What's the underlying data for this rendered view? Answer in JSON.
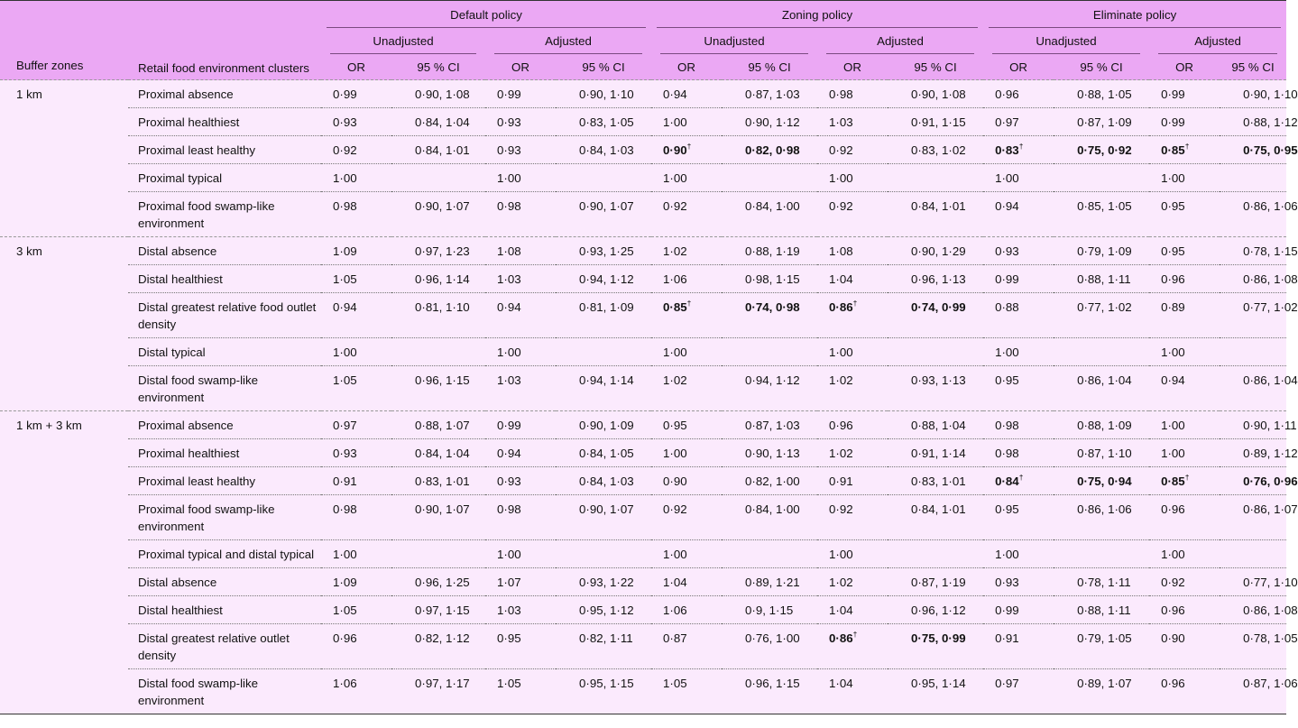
{
  "header": {
    "buffer_zones": "Buffer zones",
    "clusters": "Retail food environment clusters",
    "policies": [
      "Default policy",
      "Zoning policy",
      "Eliminate policy"
    ],
    "subgroups": [
      "Unadjusted",
      "Adjusted"
    ],
    "or": "OR",
    "ci": "95 % CI"
  },
  "groups": [
    {
      "zone": "1 km",
      "rows": [
        {
          "cluster": "Proximal absence",
          "v": [
            [
              "0·99",
              "0·90, 1·08"
            ],
            [
              "0·99",
              "0·90, 1·10"
            ],
            [
              "0·94",
              "0·87, 1·03"
            ],
            [
              "0·98",
              "0·90, 1·08"
            ],
            [
              "0·96",
              "0·88, 1·05"
            ],
            [
              "0·99",
              "0·90, 1·10"
            ]
          ]
        },
        {
          "cluster": "Proximal healthiest",
          "v": [
            [
              "0·93",
              "0·84, 1·04"
            ],
            [
              "0·93",
              "0·83, 1·05"
            ],
            [
              "1·00",
              "0·90, 1·12"
            ],
            [
              "1·03",
              "0·91, 1·15"
            ],
            [
              "0·97",
              "0·87, 1·09"
            ],
            [
              "0·99",
              "0·88, 1·12"
            ]
          ]
        },
        {
          "cluster": "Proximal least healthy",
          "v": [
            [
              "0·92",
              "0·84, 1·01"
            ],
            [
              "0·93",
              "0·84, 1·03"
            ],
            [
              "0·90",
              "0·82, 0·98",
              true
            ],
            [
              "0·92",
              "0·83, 1·02"
            ],
            [
              "0·83",
              "0·75, 0·92",
              true
            ],
            [
              "0·85",
              "0·75, 0·95",
              true
            ]
          ]
        },
        {
          "cluster": "Proximal typical",
          "v": [
            [
              "1·00",
              ""
            ],
            [
              "1·00",
              ""
            ],
            [
              "1·00",
              ""
            ],
            [
              "1·00",
              ""
            ],
            [
              "1·00",
              ""
            ],
            [
              "1·00",
              ""
            ]
          ]
        },
        {
          "cluster": "Proximal food swamp-like environment",
          "v": [
            [
              "0·98",
              "0·90, 1·07"
            ],
            [
              "0·98",
              "0·90, 1·07"
            ],
            [
              "0·92",
              "0·84, 1·00"
            ],
            [
              "0·92",
              "0·84, 1·01"
            ],
            [
              "0·94",
              "0·85, 1·05"
            ],
            [
              "0·95",
              "0·86, 1·06"
            ]
          ]
        }
      ]
    },
    {
      "zone": "3 km",
      "rows": [
        {
          "cluster": "Distal absence",
          "v": [
            [
              "1·09",
              "0·97, 1·23"
            ],
            [
              "1·08",
              "0·93, 1·25"
            ],
            [
              "1·02",
              "0·88, 1·19"
            ],
            [
              "1·08",
              "0·90, 1·29"
            ],
            [
              "0·93",
              "0·79, 1·09"
            ],
            [
              "0·95",
              "0·78, 1·15"
            ]
          ]
        },
        {
          "cluster": "Distal healthiest",
          "v": [
            [
              "1·05",
              "0·96, 1·14"
            ],
            [
              "1·03",
              "0·94, 1·12"
            ],
            [
              "1·06",
              "0·98, 1·15"
            ],
            [
              "1·04",
              "0·96, 1·13"
            ],
            [
              "0·99",
              "0·88, 1·11"
            ],
            [
              "0·96",
              "0·86, 1·08"
            ]
          ]
        },
        {
          "cluster": "Distal greatest relative food outlet density",
          "v": [
            [
              "0·94",
              "0·81, 1·10"
            ],
            [
              "0·94",
              "0·81, 1·09"
            ],
            [
              "0·85",
              "0·74, 0·98",
              true
            ],
            [
              "0·86",
              "0·74, 0·99",
              true
            ],
            [
              "0·88",
              "0·77, 1·02"
            ],
            [
              "0·89",
              "0·77, 1·02"
            ]
          ]
        },
        {
          "cluster": "Distal typical",
          "v": [
            [
              "1·00",
              ""
            ],
            [
              "1·00",
              ""
            ],
            [
              "1·00",
              ""
            ],
            [
              "1·00",
              ""
            ],
            [
              "1·00",
              ""
            ],
            [
              "1·00",
              ""
            ]
          ]
        },
        {
          "cluster": "Distal food swamp-like environment",
          "v": [
            [
              "1·05",
              "0·96, 1·15"
            ],
            [
              "1·03",
              "0·94, 1·14"
            ],
            [
              "1·02",
              "0·94, 1·12"
            ],
            [
              "1·02",
              "0·93, 1·13"
            ],
            [
              "0·95",
              "0·86, 1·04"
            ],
            [
              "0·94",
              "0·86, 1·04"
            ]
          ]
        }
      ]
    },
    {
      "zone": "1 km + 3 km",
      "rows": [
        {
          "cluster": "Proximal absence",
          "v": [
            [
              "0·97",
              "0·88, 1·07"
            ],
            [
              "0·99",
              "0·90, 1·09"
            ],
            [
              "0·95",
              "0·87, 1·03"
            ],
            [
              "0·96",
              "0·88, 1·04"
            ],
            [
              "0·98",
              "0·88, 1·09"
            ],
            [
              "1·00",
              "0·90, 1·11"
            ]
          ]
        },
        {
          "cluster": "Proximal healthiest",
          "v": [
            [
              "0·93",
              "0·84, 1·04"
            ],
            [
              "0·94",
              "0·84, 1·05"
            ],
            [
              "1·00",
              "0·90, 1·13"
            ],
            [
              "1·02",
              "0·91, 1·14"
            ],
            [
              "0·98",
              "0·87, 1·10"
            ],
            [
              "1·00",
              "0·89, 1·12"
            ]
          ]
        },
        {
          "cluster": "Proximal least healthy",
          "v": [
            [
              "0·91",
              "0·83, 1·01"
            ],
            [
              "0·93",
              "0·84, 1·03"
            ],
            [
              "0·90",
              "0·82, 1·00"
            ],
            [
              "0·91",
              "0·83, 1·01"
            ],
            [
              "0·84",
              "0·75, 0·94",
              true
            ],
            [
              "0·85",
              "0·76, 0·96",
              true
            ]
          ]
        },
        {
          "cluster": "Proximal food swamp-like environment",
          "v": [
            [
              "0·98",
              "0·90, 1·07"
            ],
            [
              "0·98",
              "0·90, 1·07"
            ],
            [
              "0·92",
              "0·84, 1·00"
            ],
            [
              "0·92",
              "0·84, 1·01"
            ],
            [
              "0·95",
              "0·86, 1·06"
            ],
            [
              "0·96",
              "0·86, 1·07"
            ]
          ]
        },
        {
          "cluster": "Proximal typical and distal typical",
          "v": [
            [
              "1·00",
              ""
            ],
            [
              "1·00",
              ""
            ],
            [
              "1·00",
              ""
            ],
            [
              "1·00",
              ""
            ],
            [
              "1·00",
              ""
            ],
            [
              "1·00",
              ""
            ]
          ]
        },
        {
          "cluster": "Distal absence",
          "v": [
            [
              "1·09",
              "0·96, 1·25"
            ],
            [
              "1·07",
              "0·93, 1·22"
            ],
            [
              "1·04",
              "0·89, 1·21"
            ],
            [
              "1·02",
              "0·87, 1·19"
            ],
            [
              "0·93",
              "0·78, 1·11"
            ],
            [
              "0·92",
              "0·77, 1·10"
            ]
          ]
        },
        {
          "cluster": "Distal healthiest",
          "v": [
            [
              "1·05",
              "0·97, 1·15"
            ],
            [
              "1·03",
              "0·95, 1·12"
            ],
            [
              "1·06",
              "0·9, 1·15"
            ],
            [
              "1·04",
              "0·96, 1·12"
            ],
            [
              "0·99",
              "0·88, 1·11"
            ],
            [
              "0·96",
              "0·86, 1·08"
            ]
          ]
        },
        {
          "cluster": "Distal greatest relative outlet density",
          "v": [
            [
              "0·96",
              "0·82, 1·12"
            ],
            [
              "0·95",
              "0·82, 1·11"
            ],
            [
              "0·87",
              "0·76, 1·00"
            ],
            [
              "0·86",
              "0·75, 0·99",
              true
            ],
            [
              "0·91",
              "0·79, 1·05"
            ],
            [
              "0·90",
              "0·78, 1·05"
            ]
          ]
        },
        {
          "cluster": "Distal food swamp-like environment",
          "v": [
            [
              "1·06",
              "0·97, 1·17"
            ],
            [
              "1·05",
              "0·95, 1·15"
            ],
            [
              "1·05",
              "0·96, 1·15"
            ],
            [
              "1·04",
              "0·95, 1·14"
            ],
            [
              "0·97",
              "0·89, 1·07"
            ],
            [
              "0·96",
              "0·87, 1·06"
            ]
          ]
        }
      ]
    }
  ],
  "footnote_mark": "†"
}
